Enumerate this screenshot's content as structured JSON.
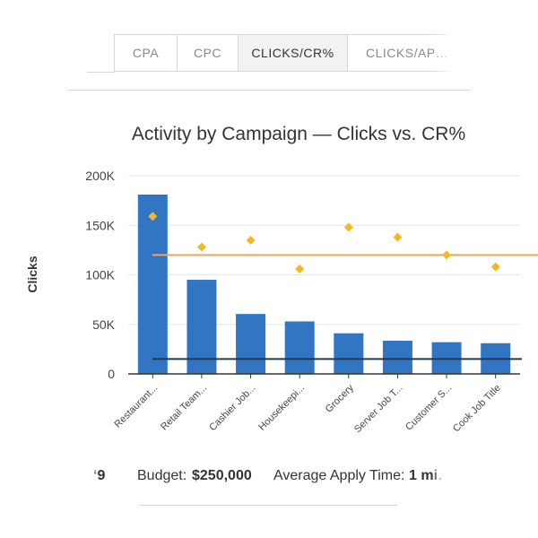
{
  "tabs": [
    {
      "label": "CPA",
      "active": false
    },
    {
      "label": "CPC",
      "active": false
    },
    {
      "label": "CLICKS/CR%",
      "active": true
    },
    {
      "label": "CLICKS/AP…",
      "active": false
    }
  ],
  "colors": {
    "bar": "#3276c3",
    "cr_marker": "#f5b821",
    "cr_line": "#f5a35a",
    "clicks_line": "#1f3a52",
    "axis": "#333333",
    "grid": "#e6e6e6"
  },
  "chart_data": {
    "type": "bar",
    "title": "Activity by Campaign — Clicks vs. CR%",
    "ylabel": "Clicks",
    "ylim": [
      0,
      200000
    ],
    "yticks": [
      0,
      50000,
      100000,
      150000,
      200000
    ],
    "ytick_labels": [
      "0",
      "50K",
      "100K",
      "150K",
      "200K"
    ],
    "categories": [
      "Restaurant...",
      "Retail Team...",
      "Cashier Job...",
      "Housekeepi...",
      "Grocery",
      "Server Job T...",
      "Customer S...",
      "Cook Job Title"
    ],
    "series": [
      {
        "type": "bar",
        "values": [
          181000,
          95000,
          60500,
          53000,
          41000,
          33500,
          32000,
          31000
        ]
      },
      {
        "type": "marker",
        "values": [
          159000,
          128000,
          135000,
          106000,
          148000,
          138000,
          120000,
          108000
        ]
      }
    ],
    "reference_lines": [
      {
        "kind": "cr_average",
        "value": 120000
      },
      {
        "kind": "clicks_average",
        "value": 15000
      }
    ],
    "grid": true
  },
  "footer": {
    "lead_fragment": "‘9",
    "budget_label": "Budget:",
    "budget_value": "$250,000",
    "apply_label": "Average Apply Time:",
    "apply_value": "1 mi…"
  }
}
